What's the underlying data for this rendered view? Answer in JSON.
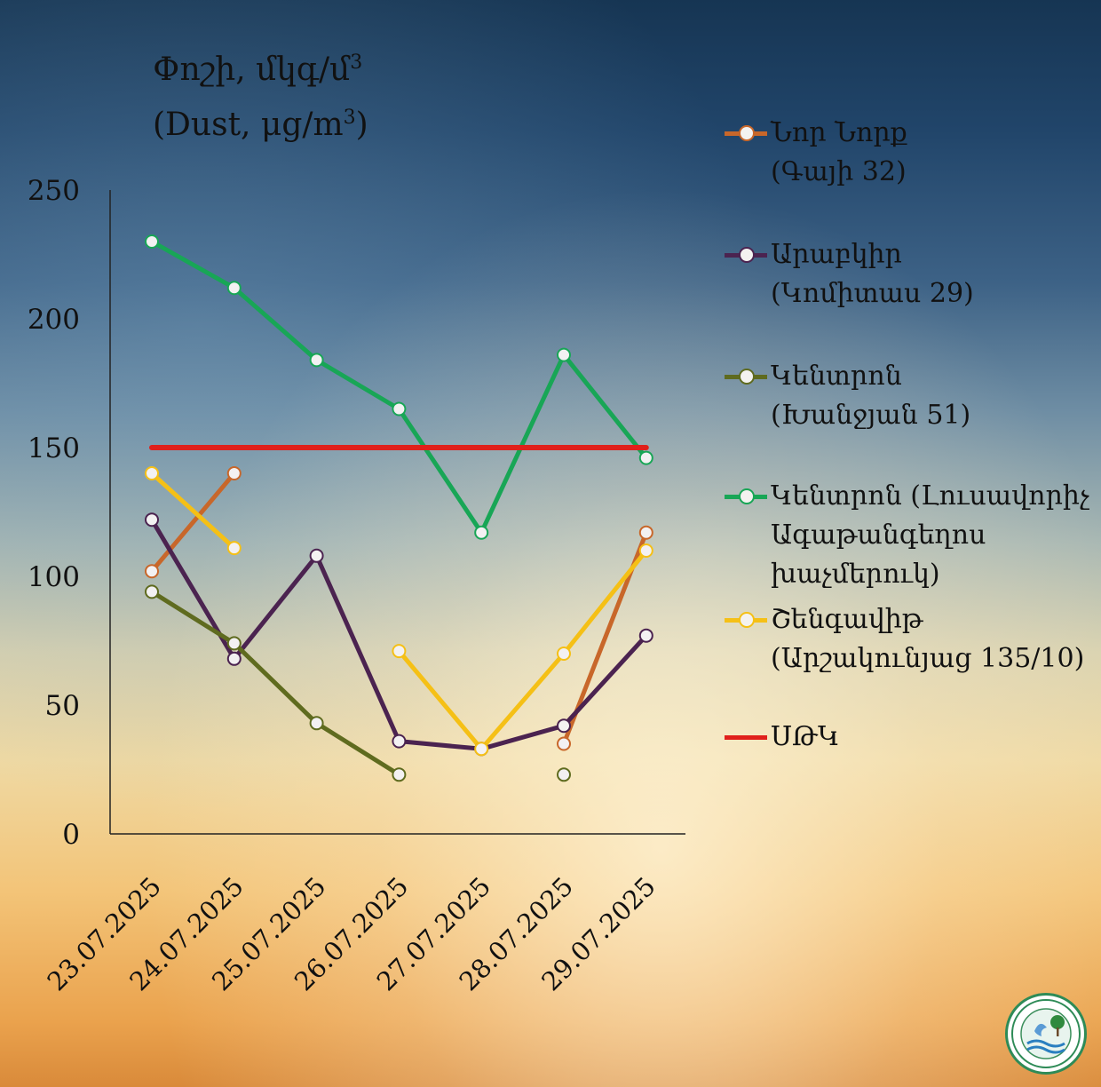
{
  "chart_data": {
    "type": "line",
    "title": "Փոշի, մկգ/մ",
    "title_sup": "3",
    "title_line2": "(Dust, μg/m",
    "title_line2_sup": "3",
    "title_line2_end": ")",
    "categories": [
      "23.07.2025",
      "24.07.2025",
      "25.07.2025",
      "26.07.2025",
      "27.07.2025",
      "28.07.2025",
      "29.07.2025"
    ],
    "ylim": [
      0,
      250
    ],
    "yticks": [
      "0",
      "50",
      "100",
      "150",
      "200",
      "250"
    ],
    "grid": false,
    "legend_position": "right",
    "series": [
      {
        "name": "Նոր Նորք\n(Գայի 32)",
        "color": "#c8672a",
        "values": [
          102,
          140,
          null,
          null,
          null,
          35,
          117
        ]
      },
      {
        "name": "Արաբկիր\n(Կոմիտաս 29)",
        "color": "#4b2350",
        "values": [
          122,
          68,
          108,
          36,
          33,
          42,
          77
        ]
      },
      {
        "name": "Կենտրոն\n(Խանջյան 51)",
        "color": "#5f6b1f",
        "values": [
          94,
          74,
          43,
          23,
          null,
          23,
          null
        ]
      },
      {
        "name": "Կենտրոն (Լուսավորիչ\nԱգաթանգեղոս\nխաչմերուկ)",
        "color": "#18a656",
        "values": [
          230,
          212,
          184,
          165,
          117,
          186,
          146
        ]
      },
      {
        "name": "Շենգավիթ\n(Արշակունյաց 135/10)",
        "color": "#f5c016",
        "values": [
          140,
          111,
          null,
          71,
          33,
          70,
          110
        ]
      },
      {
        "name": "ՍԹԿ",
        "color": "#e0201b",
        "values": [
          150,
          150,
          150,
          150,
          150,
          150,
          150
        ],
        "no_markers": true
      }
    ]
  },
  "logo": {
    "name": "ministry-emblem"
  }
}
